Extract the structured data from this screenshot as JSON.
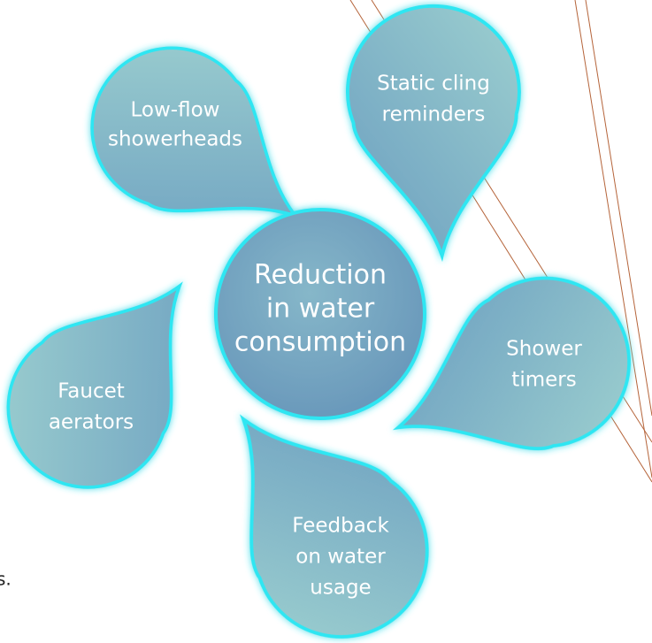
{
  "center": {
    "lines": [
      "Reduction",
      "in water",
      "consumption"
    ]
  },
  "petals": [
    {
      "lines": [
        "Low-flow",
        "showerheads"
      ]
    },
    {
      "lines": [
        "Static cling",
        "reminders"
      ]
    },
    {
      "lines": [
        "Shower",
        "timers"
      ]
    },
    {
      "lines": [
        "Feedback",
        "on water",
        "usage"
      ]
    },
    {
      "lines": [
        "Faucet",
        "aerators"
      ]
    }
  ],
  "fragment": "s."
}
